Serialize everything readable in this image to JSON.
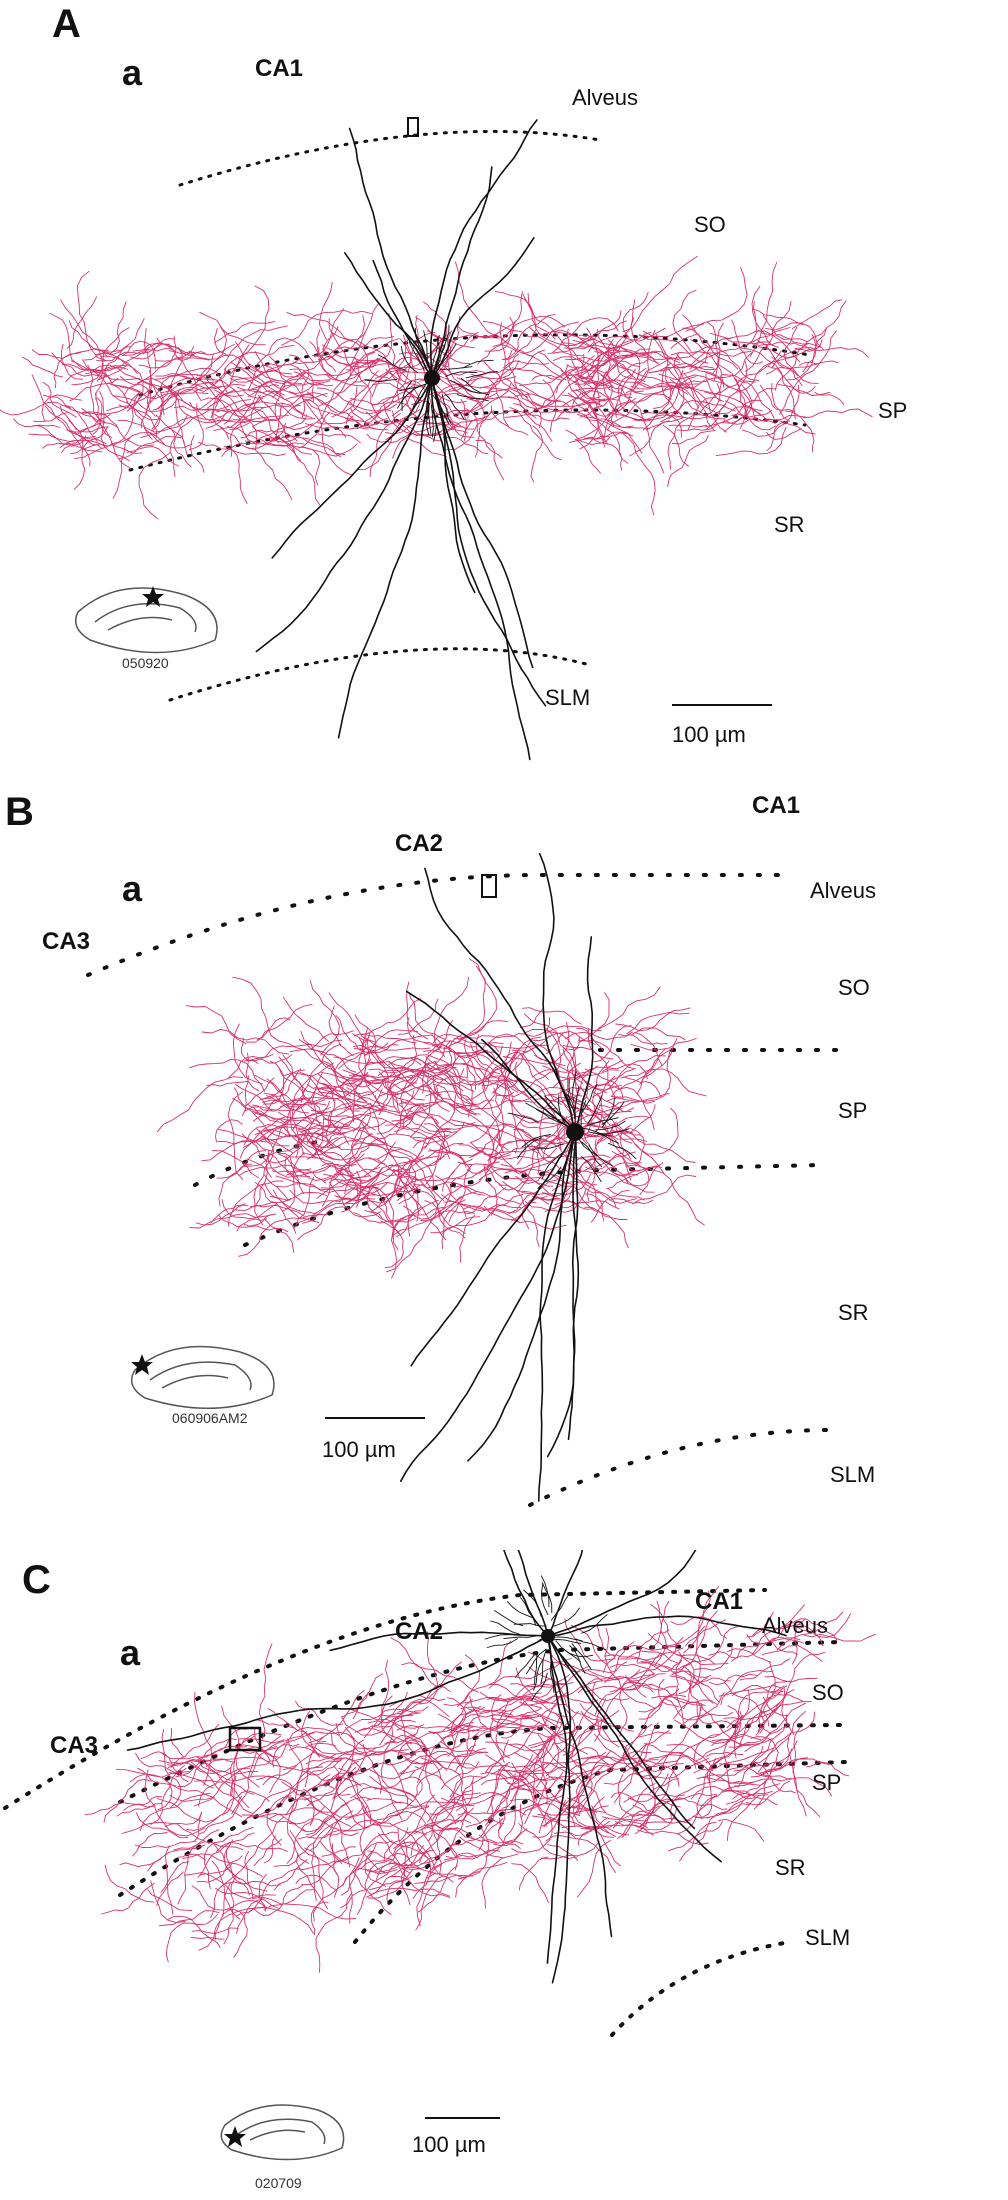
{
  "panels": [
    {
      "letter": "A",
      "sub": "a",
      "regions": [
        "CA1"
      ],
      "layers": [
        "Alveus",
        "SO",
        "SP",
        "SR",
        "SLM"
      ],
      "scale_bar": "100 µm",
      "slice_id": "050920"
    },
    {
      "letter": "B",
      "sub": "a",
      "regions": [
        "CA2",
        "CA1",
        "CA3"
      ],
      "layers": [
        "Alveus",
        "SO",
        "SP",
        "SR",
        "SLM"
      ],
      "scale_bar": "100 µm",
      "slice_id": "060906AM2"
    },
    {
      "letter": "C",
      "sub": "a",
      "regions": [
        "CA2",
        "CA1",
        "CA3"
      ],
      "layers": [
        "Alveus",
        "SO",
        "SP",
        "SR",
        "SLM"
      ],
      "scale_bar": "100 µm",
      "slice_id": "020709"
    }
  ],
  "colors": {
    "axon": "#d6336c",
    "dendrite": "#111111",
    "boundary": "#111111"
  }
}
